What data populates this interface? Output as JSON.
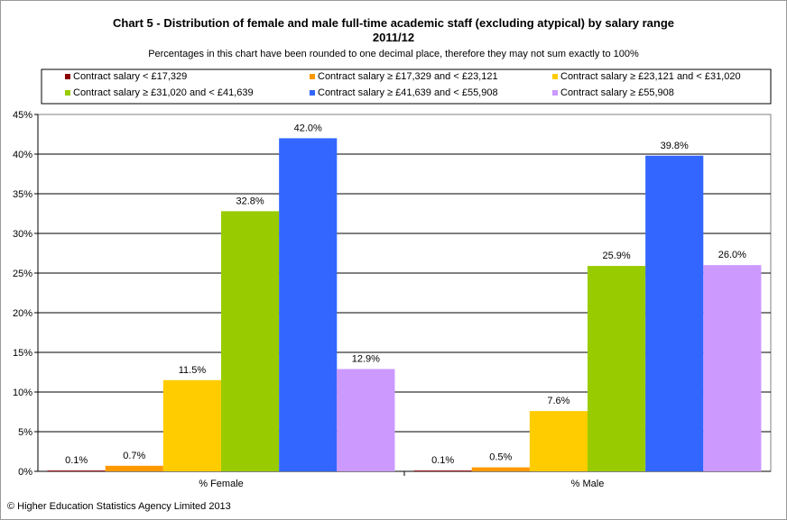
{
  "chart_data": {
    "type": "bar",
    "title": "Chart 5 - Distribution  of female and male full-time academic staff (excluding atypical) by salary range",
    "title_line2": "2011/12",
    "subtitle": "Percentages in this chart have been rounded to one decimal place, therefore they may not sum exactly to 100%",
    "categories": [
      "% Female",
      "% Male"
    ],
    "ylim": [
      0,
      45
    ],
    "y_ticks": [
      "0%",
      "5%",
      "10%",
      "15%",
      "20%",
      "25%",
      "30%",
      "35%",
      "40%",
      "45%"
    ],
    "grid": true,
    "legend_position": "top",
    "series": [
      {
        "name": "Contract salary < £17,329",
        "color": "#8b0000",
        "values": [
          0.1,
          0.1
        ],
        "labels": [
          "0.1%",
          "0.1%"
        ]
      },
      {
        "name": "Contract salary ≥ £17,329 and < £23,121",
        "color": "#ff9900",
        "values": [
          0.7,
          0.5
        ],
        "labels": [
          "0.7%",
          "0.5%"
        ]
      },
      {
        "name": "Contract salary ≥ £23,121 and < £31,020",
        "color": "#ffcc00",
        "values": [
          11.5,
          7.6
        ],
        "labels": [
          "11.5%",
          "7.6%"
        ]
      },
      {
        "name": "Contract salary ≥ £31,020 and < £41,639",
        "color": "#99cc00",
        "values": [
          32.8,
          25.9
        ],
        "labels": [
          "32.8%",
          "25.9%"
        ]
      },
      {
        "name": "Contract salary ≥ £41,639 and < £55,908",
        "color": "#3366ff",
        "values": [
          42.0,
          39.8
        ],
        "labels": [
          "42.0%",
          "39.8%"
        ]
      },
      {
        "name": "Contract salary ≥ £55,908",
        "color": "#cc99ff",
        "values": [
          12.9,
          26.0
        ],
        "labels": [
          "12.9%",
          "26.0%"
        ]
      }
    ]
  },
  "footer": {
    "copyright": "© Higher Education Statistics Agency Limited 2013"
  }
}
